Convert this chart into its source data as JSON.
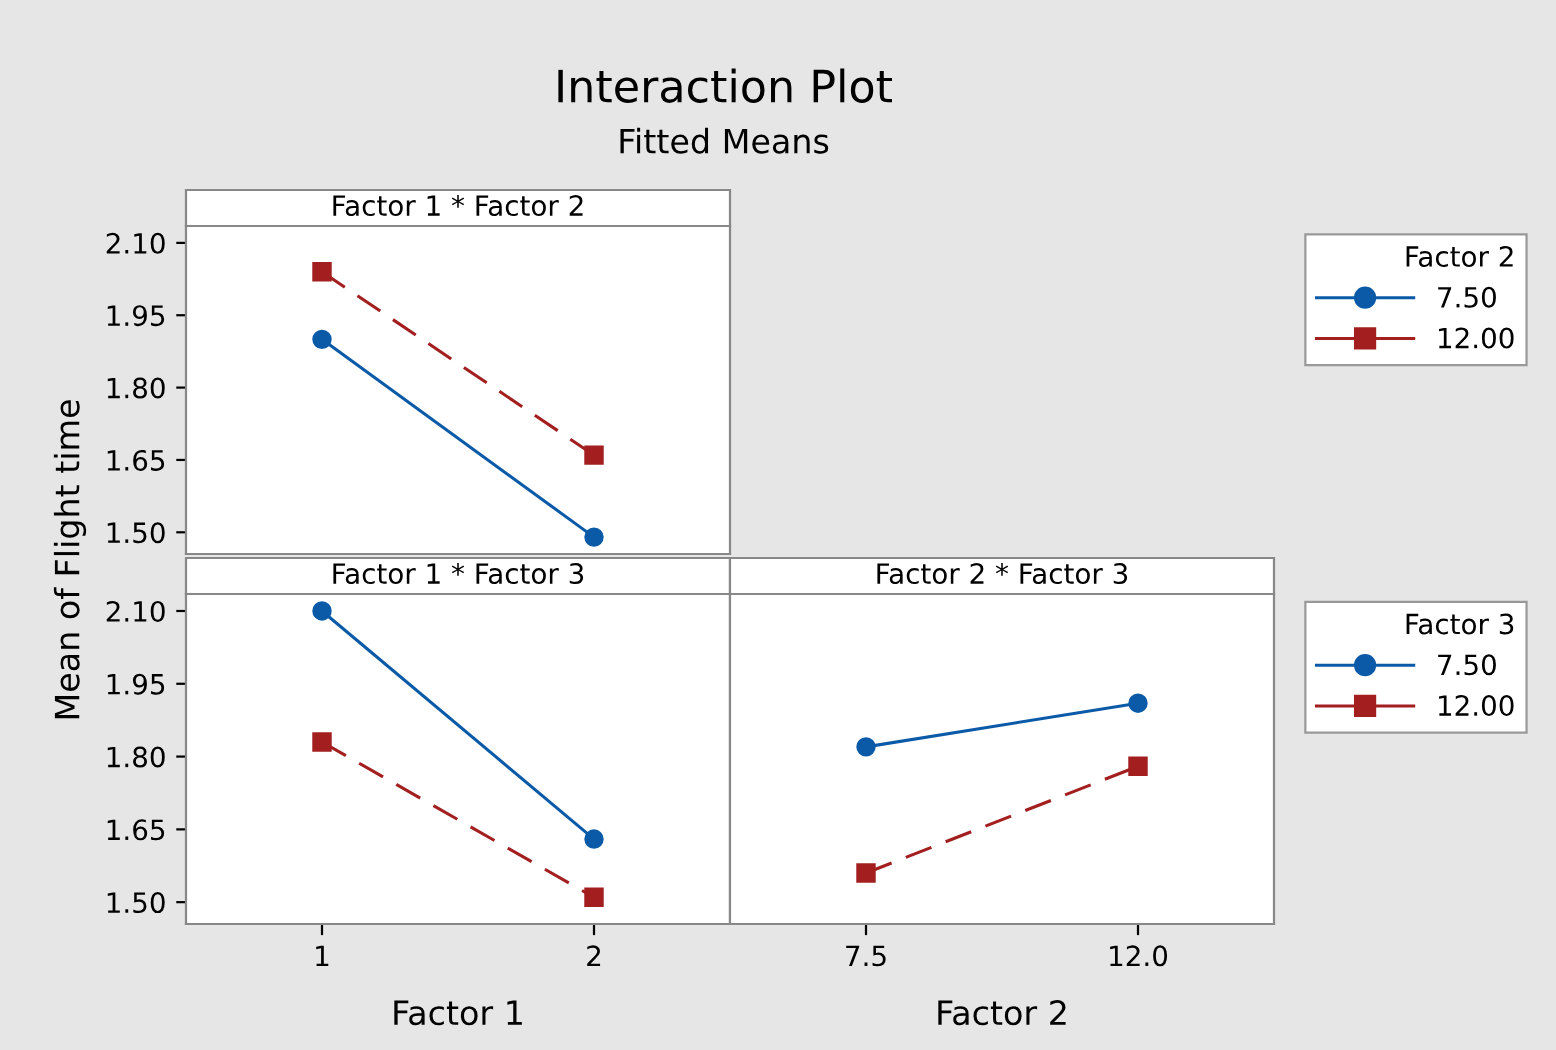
{
  "chart_data": [
    {
      "type": "line",
      "title": "Interaction Plot",
      "subtitle": "Fitted Means",
      "ylabel": "Mean of Flight time",
      "annotations": [
        "Factor 1 * Factor 2"
      ],
      "legend_title": "Factor 2",
      "legend": "right",
      "tick_labels": "y",
      "x": [
        1,
        2
      ],
      "xlim": [
        0.5,
        2.5
      ],
      "xticks": [
        1,
        2
      ],
      "ylim": [
        1.455,
        2.135
      ],
      "yticks": [
        {
          "value": 1.5,
          "label": "1.50"
        },
        {
          "value": 1.65,
          "label": "1.65"
        },
        {
          "value": 1.8,
          "label": "1.80"
        },
        {
          "value": 1.95,
          "label": "1.95"
        },
        {
          "value": 2.1,
          "label": "2.10"
        }
      ],
      "series": [
        {
          "name": "7.50",
          "color": "#0b5aa8",
          "marker": "circle",
          "line_style": "solid",
          "values": [
            1.9,
            1.49
          ]
        },
        {
          "name": "12.00",
          "color": "#a31f1f",
          "marker": "square",
          "line_style": "dashed",
          "values": [
            2.04,
            1.66
          ]
        }
      ]
    },
    {
      "type": "line",
      "xlabel": "Factor 1",
      "annotations": [
        "Factor 1 * Factor 3"
      ],
      "legend_title": "Factor 3",
      "legend": "right",
      "x": [
        1,
        2
      ],
      "xlim": [
        0.5,
        2.5
      ],
      "xticks": [
        1,
        2
      ],
      "ylim": [
        1.455,
        2.135
      ],
      "yticks": [
        {
          "value": 1.5,
          "label": "1.50"
        },
        {
          "value": 1.65,
          "label": "1.65"
        },
        {
          "value": 1.8,
          "label": "1.80"
        },
        {
          "value": 1.95,
          "label": "1.95"
        },
        {
          "value": 2.1,
          "label": "2.10"
        }
      ],
      "series": [
        {
          "name": "7.50",
          "color": "#0b5aa8",
          "marker": "circle",
          "line_style": "solid",
          "values": [
            2.1,
            1.63
          ]
        },
        {
          "name": "12.00",
          "color": "#a31f1f",
          "marker": "square",
          "line_style": "dashed",
          "values": [
            1.83,
            1.51
          ]
        }
      ]
    },
    {
      "type": "line",
      "xlabel": "Factor 2",
      "annotations": [
        "Factor 2 * Factor 3"
      ],
      "tick_labels": "x",
      "x": [
        7.5,
        12
      ],
      "xlim": [
        5.25,
        14.25
      ],
      "xticks": [
        {
          "value": 7.5,
          "label": "7.5"
        },
        {
          "value": 12,
          "label": "12.0"
        }
      ],
      "ylim": [
        1.455,
        2.135
      ],
      "series": [
        {
          "color": "#0b5aa8",
          "marker": "circle",
          "line_style": "solid",
          "values": [
            1.82,
            1.91
          ]
        },
        {
          "color": "#a31f1f",
          "marker": "square",
          "line_style": "dashed",
          "values": [
            1.56,
            1.78
          ]
        }
      ]
    }
  ]
}
